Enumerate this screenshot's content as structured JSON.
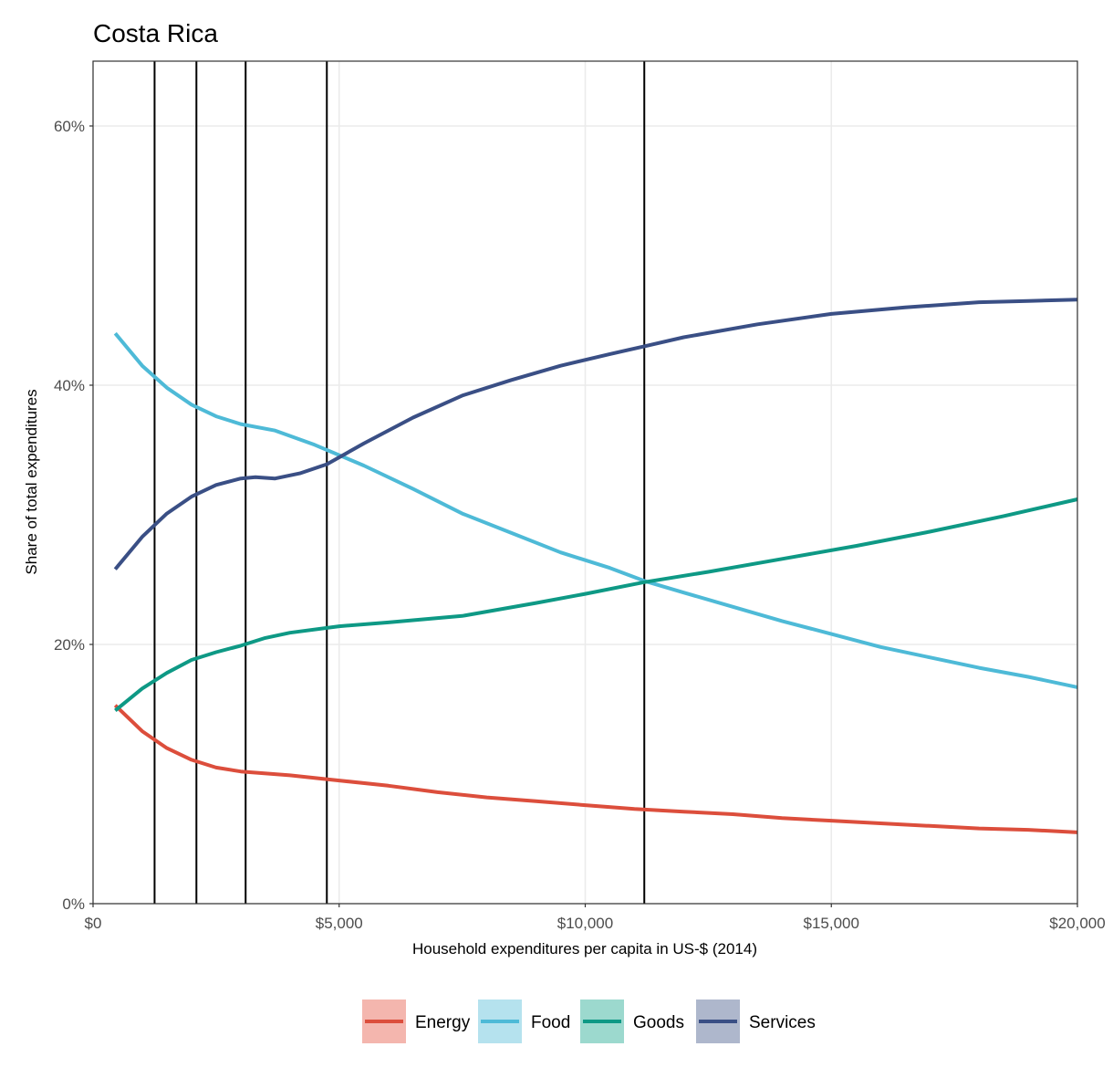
{
  "chart_data": {
    "type": "line",
    "title": "Costa Rica",
    "xlabel": "Household expenditures per capita in US-$ (2014)",
    "ylabel": "Share of total expenditures",
    "xlim": [
      0,
      20000
    ],
    "ylim": [
      0,
      65
    ],
    "x_ticks": [
      0,
      5000,
      10000,
      15000,
      20000
    ],
    "x_tick_labels": [
      "$0",
      "$5,000",
      "$10,000",
      "$15,000",
      "$20,000"
    ],
    "y_ticks": [
      0,
      20,
      40,
      60
    ],
    "y_tick_labels": [
      "0%",
      "20%",
      "40%",
      "60%"
    ],
    "grid": true,
    "legend_position": "bottom",
    "vertical_lines": [
      1250,
      2100,
      3100,
      4750,
      11200
    ],
    "series": [
      {
        "name": "Energy",
        "color": "#DC4E3C",
        "legend_fill": "#F4B6AE",
        "x": [
          450,
          1000,
          1500,
          2000,
          2500,
          3000,
          4000,
          5000,
          6000,
          7000,
          8000,
          9000,
          10000,
          11000,
          12000,
          13000,
          14000,
          15000,
          16000,
          17000,
          18000,
          19000,
          20000
        ],
        "y": [
          15.3,
          13.3,
          12.0,
          11.1,
          10.5,
          10.2,
          9.9,
          9.5,
          9.1,
          8.6,
          8.2,
          7.9,
          7.6,
          7.3,
          7.1,
          6.9,
          6.6,
          6.4,
          6.2,
          6.0,
          5.8,
          5.7,
          5.5
        ]
      },
      {
        "name": "Food",
        "color": "#4EBAD7",
        "legend_fill": "#B5E2EE",
        "x": [
          450,
          1000,
          1500,
          2000,
          2500,
          3000,
          3700,
          4500,
          5500,
          6500,
          7500,
          8500,
          9500,
          10500,
          11200,
          12000,
          13000,
          14000,
          15000,
          16000,
          17000,
          18000,
          19000,
          20000
        ],
        "y": [
          44.0,
          41.5,
          39.8,
          38.5,
          37.6,
          37.0,
          36.5,
          35.4,
          33.8,
          32.0,
          30.1,
          28.6,
          27.1,
          25.9,
          24.9,
          24.0,
          22.9,
          21.8,
          20.8,
          19.8,
          19.0,
          18.2,
          17.5,
          16.7
        ]
      },
      {
        "name": "Goods",
        "color": "#0E9985",
        "legend_fill": "#9CD9CE",
        "x": [
          450,
          1000,
          1500,
          2000,
          2500,
          3000,
          3500,
          4000,
          5000,
          6000,
          7500,
          9000,
          10000,
          11200,
          12500,
          14000,
          15500,
          17000,
          18500,
          20000
        ],
        "y": [
          14.9,
          16.6,
          17.8,
          18.8,
          19.4,
          19.9,
          20.5,
          20.9,
          21.4,
          21.7,
          22.2,
          23.2,
          23.9,
          24.8,
          25.6,
          26.6,
          27.6,
          28.7,
          29.9,
          31.2
        ]
      },
      {
        "name": "Services",
        "color": "#3A4F85",
        "legend_fill": "#AEB7CC",
        "x": [
          450,
          1000,
          1500,
          2000,
          2500,
          3000,
          3300,
          3700,
          4200,
          4750,
          5500,
          6500,
          7500,
          8500,
          9500,
          10500,
          11200,
          12000,
          13500,
          15000,
          16500,
          18000,
          19000,
          20000
        ],
        "y": [
          25.8,
          28.3,
          30.1,
          31.4,
          32.3,
          32.8,
          32.9,
          32.8,
          33.2,
          33.9,
          35.5,
          37.5,
          39.2,
          40.4,
          41.5,
          42.4,
          43.0,
          43.7,
          44.7,
          45.5,
          46.0,
          46.4,
          46.5,
          46.6
        ]
      }
    ]
  }
}
